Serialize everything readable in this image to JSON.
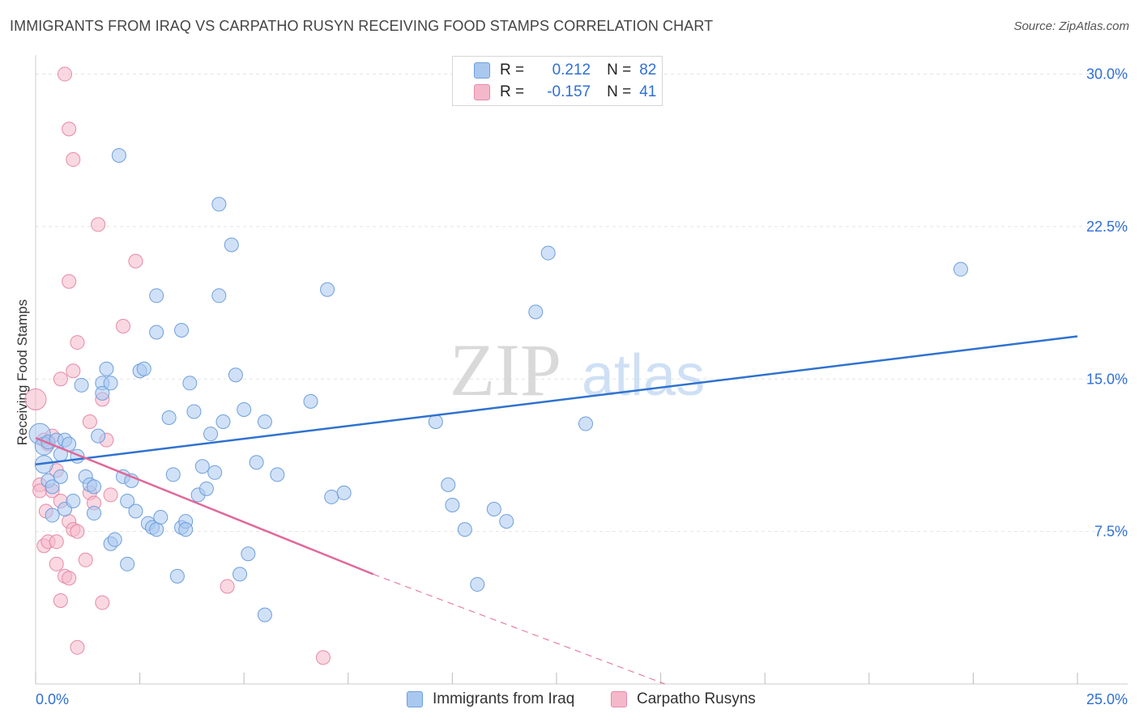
{
  "title": "IMMIGRANTS FROM IRAQ VS CARPATHO RUSYN RECEIVING FOOD STAMPS CORRELATION CHART",
  "source": "Source: ZipAtlas.com",
  "watermark": {
    "zip": "ZIP",
    "atlas": "atlas"
  },
  "legend": {
    "row1": {
      "r_label": "R =",
      "r_value": "0.212",
      "n_label": "N =",
      "n_value": "82"
    },
    "row2": {
      "r_label": "R =",
      "r_value": "-0.157",
      "n_label": "N =",
      "n_value": "41"
    }
  },
  "colors": {
    "blue_fill": "#a9c8f0",
    "blue_stroke": "#6f9fdb",
    "blue_line": "#2f72cf",
    "pink_fill": "#f5b8cb",
    "pink_stroke": "#e58aa8",
    "pink_line": "#e0689a",
    "tick_text": "#2f6fd6",
    "grid": "#e4e4e4"
  },
  "chart_data": {
    "type": "scatter",
    "title": "IMMIGRANTS FROM IRAQ VS CARPATHO RUSYN RECEIVING FOOD STAMPS CORRELATION CHART",
    "xlabel": "",
    "ylabel": "Receiving Food Stamps",
    "xlim": [
      0,
      25
    ],
    "ylim": [
      0,
      30.5
    ],
    "x_tick_labels": [
      "0.0%",
      "25.0%"
    ],
    "y_ticks": [
      7.5,
      15.0,
      22.5,
      30.0
    ],
    "y_tick_labels": [
      "7.5%",
      "15.0%",
      "22.5%",
      "30.0%"
    ],
    "grid": true,
    "series": [
      {
        "name": "Immigrants from Iraq",
        "color": "#a9c8f0",
        "r": 0.212,
        "n": 82,
        "trend": {
          "x": [
            0,
            25
          ],
          "y": [
            10.8,
            17.1
          ]
        },
        "points": [
          [
            0.1,
            12.3
          ],
          [
            0.2,
            11.7
          ],
          [
            0.2,
            10.8
          ],
          [
            0.3,
            11.9
          ],
          [
            0.3,
            10.0
          ],
          [
            0.4,
            8.3
          ],
          [
            0.4,
            9.7
          ],
          [
            0.5,
            12.0
          ],
          [
            0.6,
            11.3
          ],
          [
            0.6,
            10.2
          ],
          [
            0.7,
            8.6
          ],
          [
            0.7,
            12.0
          ],
          [
            0.8,
            11.8
          ],
          [
            0.9,
            9.0
          ],
          [
            1.0,
            11.2
          ],
          [
            1.1,
            14.7
          ],
          [
            1.2,
            10.2
          ],
          [
            1.3,
            9.8
          ],
          [
            1.4,
            9.7
          ],
          [
            1.4,
            8.4
          ],
          [
            1.5,
            12.2
          ],
          [
            1.6,
            14.8
          ],
          [
            1.6,
            14.3
          ],
          [
            1.7,
            15.5
          ],
          [
            1.8,
            14.8
          ],
          [
            1.8,
            6.9
          ],
          [
            1.9,
            7.1
          ],
          [
            2.0,
            26.0
          ],
          [
            2.1,
            10.2
          ],
          [
            2.2,
            9.0
          ],
          [
            2.2,
            5.9
          ],
          [
            2.3,
            10.0
          ],
          [
            2.4,
            8.5
          ],
          [
            2.5,
            15.4
          ],
          [
            2.6,
            15.5
          ],
          [
            2.7,
            7.9
          ],
          [
            2.8,
            7.7
          ],
          [
            2.9,
            17.3
          ],
          [
            2.9,
            7.6
          ],
          [
            3.0,
            8.2
          ],
          [
            2.9,
            19.1
          ],
          [
            3.2,
            13.1
          ],
          [
            3.3,
            10.3
          ],
          [
            3.4,
            5.3
          ],
          [
            3.5,
            17.4
          ],
          [
            3.5,
            7.7
          ],
          [
            3.6,
            8.0
          ],
          [
            3.6,
            7.6
          ],
          [
            3.7,
            14.8
          ],
          [
            3.8,
            13.4
          ],
          [
            3.9,
            9.3
          ],
          [
            4.0,
            10.7
          ],
          [
            4.1,
            9.6
          ],
          [
            4.2,
            12.3
          ],
          [
            4.3,
            10.4
          ],
          [
            4.4,
            23.6
          ],
          [
            4.4,
            19.1
          ],
          [
            4.5,
            12.9
          ],
          [
            4.7,
            21.6
          ],
          [
            4.8,
            15.2
          ],
          [
            4.9,
            5.4
          ],
          [
            5.0,
            13.5
          ],
          [
            5.1,
            6.4
          ],
          [
            5.3,
            10.9
          ],
          [
            5.5,
            12.9
          ],
          [
            5.5,
            3.4
          ],
          [
            5.8,
            10.3
          ],
          [
            6.6,
            13.9
          ],
          [
            7.0,
            19.4
          ],
          [
            7.1,
            9.2
          ],
          [
            7.4,
            9.4
          ],
          [
            9.6,
            12.9
          ],
          [
            9.9,
            9.8
          ],
          [
            10.0,
            8.8
          ],
          [
            10.3,
            7.6
          ],
          [
            10.6,
            4.9
          ],
          [
            11.0,
            8.6
          ],
          [
            11.3,
            8.0
          ],
          [
            12.0,
            18.3
          ],
          [
            12.3,
            21.2
          ],
          [
            13.2,
            12.8
          ],
          [
            22.2,
            20.4
          ]
        ]
      },
      {
        "name": "Carpatho Rusyns",
        "color": "#f5b8cb",
        "r": -0.157,
        "n": 41,
        "trend": {
          "x": [
            0,
            8.1
          ],
          "y": [
            12.1,
            5.4
          ]
        },
        "trend_dashed": {
          "x": [
            8.1,
            15.1
          ],
          "y": [
            5.4,
            0.0
          ]
        },
        "points": [
          [
            0.0,
            14.0
          ],
          [
            0.1,
            9.8
          ],
          [
            0.1,
            9.5
          ],
          [
            0.2,
            12.0
          ],
          [
            0.2,
            6.8
          ],
          [
            0.25,
            8.5
          ],
          [
            0.3,
            7.0
          ],
          [
            0.3,
            11.8
          ],
          [
            0.4,
            9.5
          ],
          [
            0.4,
            12.2
          ],
          [
            0.5,
            5.9
          ],
          [
            0.5,
            10.5
          ],
          [
            0.5,
            7.0
          ],
          [
            0.6,
            4.1
          ],
          [
            0.6,
            15.0
          ],
          [
            0.6,
            9.0
          ],
          [
            0.7,
            5.3
          ],
          [
            0.7,
            30.0
          ],
          [
            0.8,
            8.0
          ],
          [
            0.8,
            19.8
          ],
          [
            0.8,
            5.2
          ],
          [
            0.8,
            27.3
          ],
          [
            0.9,
            15.4
          ],
          [
            0.9,
            7.6
          ],
          [
            0.9,
            25.8
          ],
          [
            1.0,
            16.8
          ],
          [
            1.0,
            1.8
          ],
          [
            1.0,
            7.5
          ],
          [
            1.2,
            6.1
          ],
          [
            1.3,
            9.4
          ],
          [
            1.3,
            12.9
          ],
          [
            1.5,
            22.6
          ],
          [
            1.6,
            14.0
          ],
          [
            1.6,
            4.0
          ],
          [
            1.7,
            12.0
          ],
          [
            1.8,
            9.3
          ],
          [
            2.1,
            17.6
          ],
          [
            2.4,
            20.8
          ],
          [
            4.6,
            4.8
          ],
          [
            6.9,
            1.3
          ],
          [
            1.4,
            8.9
          ]
        ]
      }
    ]
  },
  "bottom_legend": {
    "item1": "Immigrants from Iraq",
    "item2": "Carpatho Rusyns"
  }
}
